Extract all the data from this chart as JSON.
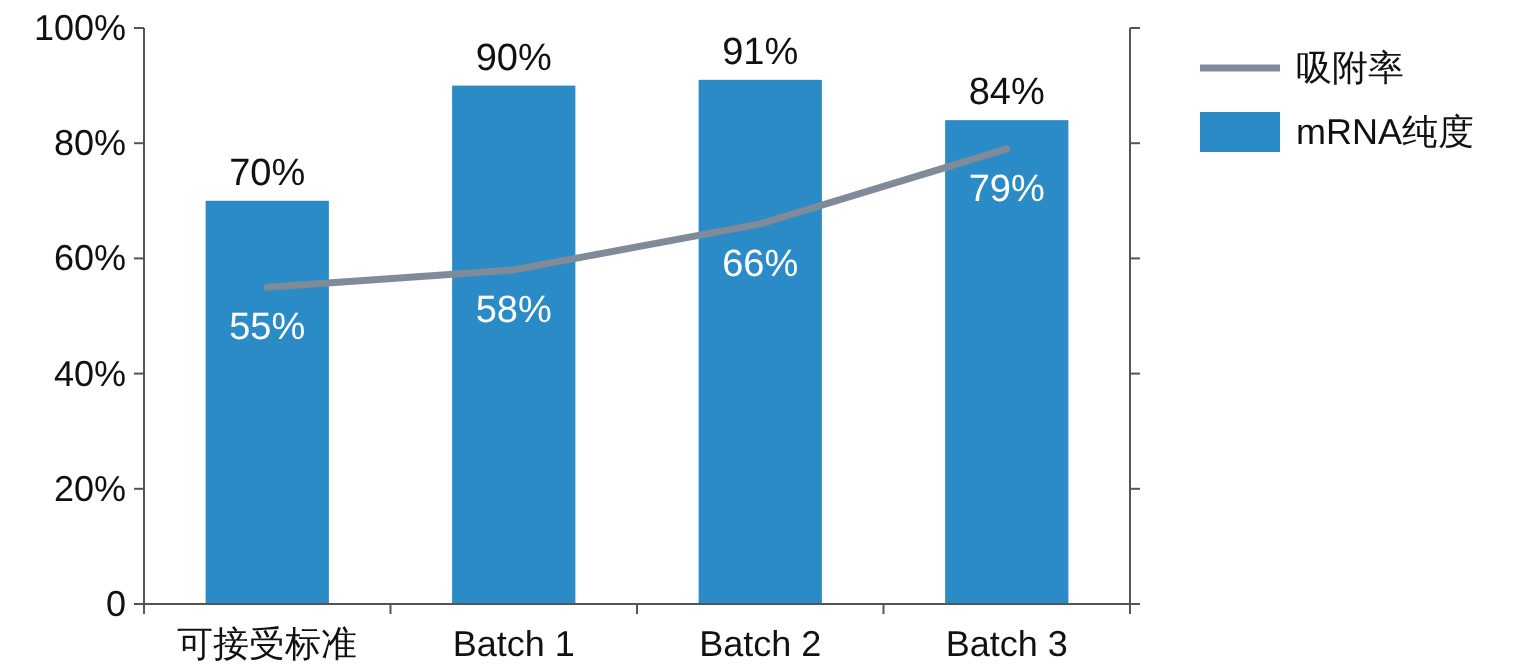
{
  "chart_data": {
    "type": "bar",
    "categories": [
      "可接受标准",
      "Batch 1",
      "Batch 2",
      "Batch 3"
    ],
    "series": [
      {
        "name": "mRNA纯度",
        "color": "#2a8bc7",
        "values": [
          70,
          90,
          91,
          84
        ],
        "value_labels": [
          "70%",
          "90%",
          "91%",
          "84%"
        ]
      },
      {
        "name": "吸附率",
        "type": "line",
        "color": "#7f8b99",
        "values": [
          55,
          58,
          66,
          79
        ],
        "value_labels": [
          "55%",
          "58%",
          "66%",
          "79%"
        ]
      }
    ],
    "ylim": [
      0,
      100
    ],
    "yticks": [
      0,
      {
        "value": 20,
        "label": "20%"
      },
      {
        "value": 40,
        "label": "40%"
      },
      {
        "value": 60,
        "label": "60%"
      },
      {
        "value": 80,
        "label": "80%"
      },
      {
        "value": 100,
        "label": "100%"
      }
    ],
    "grid": false,
    "legend": "right",
    "marker": "none",
    "line_style": "solid"
  }
}
